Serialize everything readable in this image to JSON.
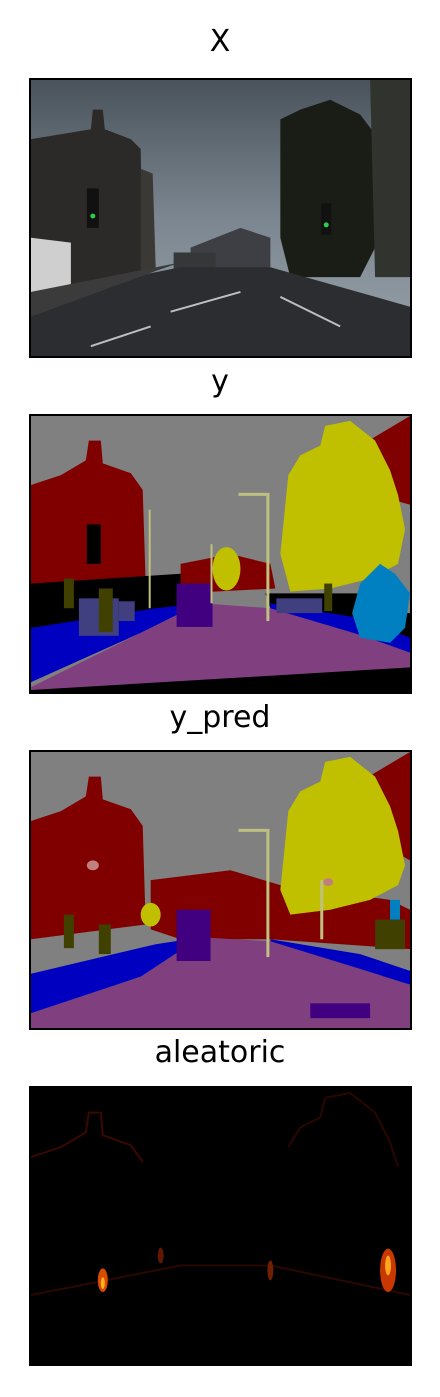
{
  "panels": [
    {
      "title": "X"
    },
    {
      "title": "y"
    },
    {
      "title": "y_pred"
    },
    {
      "title": "aleatoric"
    }
  ],
  "colors": {
    "sky": "#808080",
    "building": "#800000",
    "tree": "#c0c000",
    "road": "#804080",
    "sidewalk": "#0000c0",
    "car": "#400080",
    "fence": "#404080",
    "pedestrian": "#404000",
    "bicyclist": "#0080c0",
    "pole": "#c0c080",
    "sign": "#c08080",
    "void": "#000000"
  }
}
